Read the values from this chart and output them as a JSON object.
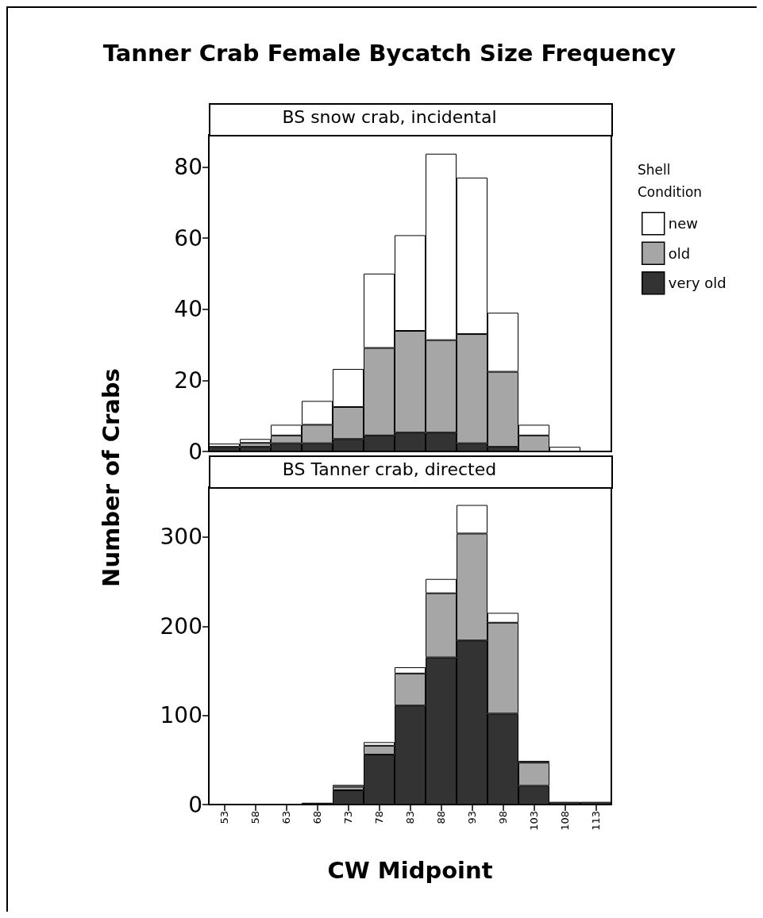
{
  "chart_data": [
    {
      "type": "bar",
      "title": "Tanner Crab Female Bycatch Size Frequency",
      "subtitle": "BS snow crab, incidental",
      "ylabel": "Number of Crabs",
      "legend_title": "Shell Condition",
      "categories": [
        "53",
        "58",
        "63",
        "68",
        "73",
        "78",
        "83",
        "88",
        "93",
        "98",
        "103",
        "108",
        "113"
      ],
      "series": [
        {
          "name": "very old",
          "color": "#333333",
          "values": [
            1.3,
            1.3,
            2.3,
            2.3,
            3.5,
            4.5,
            5.3,
            5.3,
            2.3,
            1.3,
            0,
            0,
            0
          ]
        },
        {
          "name": "old",
          "color": "#a6a6a6",
          "values": [
            0,
            1.1,
            2.2,
            5.2,
            9,
            24.6,
            28.6,
            26,
            30.7,
            21.1,
            4.5,
            0,
            0
          ]
        },
        {
          "name": "new",
          "color": "#ffffff",
          "values": [
            0.9,
            1.1,
            3,
            6.7,
            10.7,
            20.9,
            26.9,
            52.4,
            44,
            16.6,
            3,
            1.3,
            0
          ]
        }
      ],
      "stacked": true,
      "ylim": [
        0,
        89
      ],
      "yticks": [
        0,
        20,
        40,
        60,
        80
      ],
      "grid": false,
      "legend": "right",
      "tick_labels": "y"
    },
    {
      "type": "bar",
      "subtitle": "BS Tanner crab, directed",
      "xlabel": "CW Midpoint",
      "categories": [
        "53",
        "58",
        "63",
        "68",
        "73",
        "78",
        "83",
        "88",
        "93",
        "98",
        "103",
        "108",
        "113"
      ],
      "series": [
        {
          "name": "very old",
          "color": "#333333",
          "values": [
            0,
            0,
            0,
            2,
            16,
            56,
            111,
            165,
            184,
            102,
            21,
            3,
            3
          ]
        },
        {
          "name": "old",
          "color": "#a6a6a6",
          "values": [
            0,
            0,
            0,
            0,
            4,
            10,
            36,
            72,
            120,
            102,
            26,
            0,
            0
          ]
        },
        {
          "name": "new",
          "color": "#ffffff",
          "values": [
            0,
            0,
            0,
            0,
            2,
            4,
            7,
            16,
            32,
            11,
            2,
            0,
            0
          ]
        }
      ],
      "stacked": true,
      "ylim": [
        0,
        356
      ],
      "yticks": [
        0,
        100,
        200,
        300
      ],
      "grid": false,
      "legend": false
    }
  ]
}
